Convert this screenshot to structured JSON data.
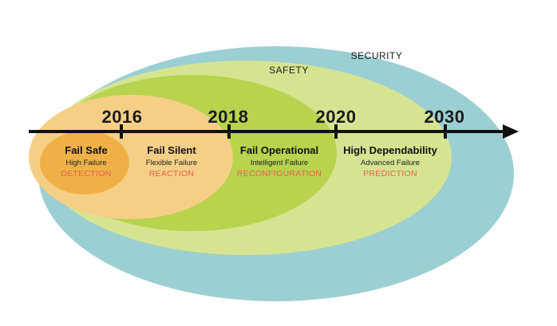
{
  "rings": {
    "security": {
      "label": "SECURITY",
      "color": "#9ccfd3"
    },
    "safety": {
      "label": "SAFETY",
      "color": "#d6e491"
    },
    "operational": {
      "color": "#b8d34e"
    },
    "silent": {
      "color": "#f6cf86"
    },
    "safe": {
      "color": "#efb147"
    }
  },
  "timeline": {
    "years": [
      "2016",
      "2018",
      "2020",
      "2030"
    ],
    "axis_color": "#111111"
  },
  "stages": [
    {
      "title": "Fail Safe",
      "subtitle": "High Failure",
      "mode": "DETECTION"
    },
    {
      "title": "Fail Silent",
      "subtitle": "Flexible Failure",
      "mode": "REACTION"
    },
    {
      "title": "Fail Operational",
      "subtitle": "Intelligent Failure",
      "mode": "RECONFIGURATION"
    },
    {
      "title": "High Dependability",
      "subtitle": "Advanced Failure",
      "mode": "PREDICTION"
    }
  ],
  "mode_color": "#e8604c"
}
